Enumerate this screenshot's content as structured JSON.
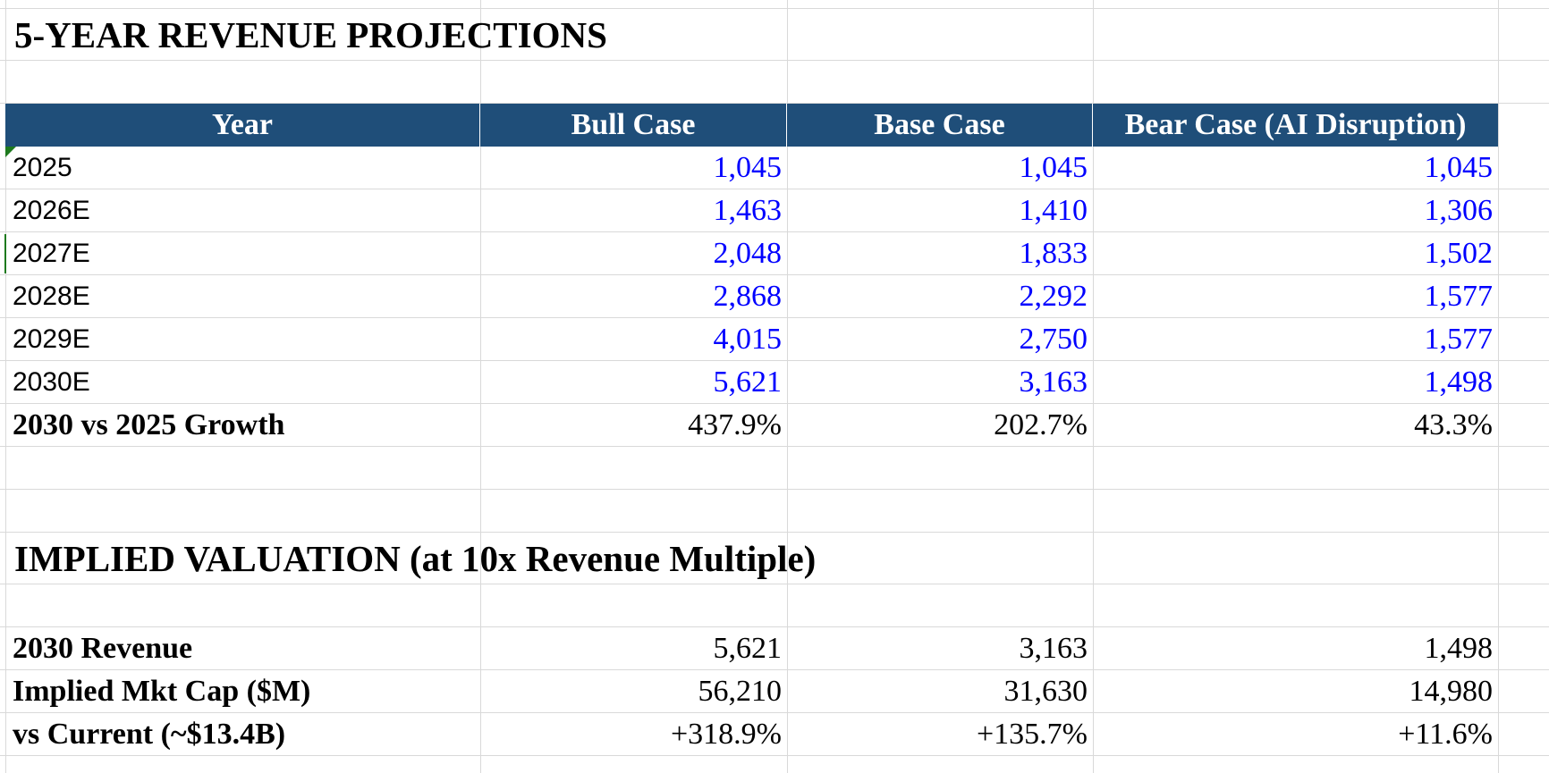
{
  "projections": {
    "title": "5-YEAR REVENUE PROJECTIONS",
    "headers": [
      "Year",
      "Bull Case",
      "Base Case",
      "Bear Case (AI Disruption)"
    ],
    "rows": [
      {
        "year": "2025",
        "bull": "1,045",
        "base": "1,045",
        "bear": "1,045"
      },
      {
        "year": "2026E",
        "bull": "1,463",
        "base": "1,410",
        "bear": "1,306"
      },
      {
        "year": "2027E",
        "bull": "2,048",
        "base": "1,833",
        "bear": "1,502"
      },
      {
        "year": "2028E",
        "bull": "2,868",
        "base": "2,292",
        "bear": "1,577"
      },
      {
        "year": "2029E",
        "bull": "4,015",
        "base": "2,750",
        "bear": "1,577"
      },
      {
        "year": "2030E",
        "bull": "5,621",
        "base": "3,163",
        "bear": "1,498"
      }
    ],
    "growth": {
      "label": "2030 vs 2025 Growth",
      "bull": "437.9%",
      "base": "202.7%",
      "bear": "43.3%"
    }
  },
  "valuation": {
    "title": "IMPLIED VALUATION (at 10x Revenue Multiple)",
    "rows": [
      {
        "label": "2030 Revenue",
        "bull": "5,621",
        "base": "3,163",
        "bear": "1,498"
      },
      {
        "label": "Implied Mkt Cap ($M)",
        "bull": "56,210",
        "base": "31,630",
        "bear": "14,980"
      },
      {
        "label": "vs Current (~$13.4B)",
        "bull": "+318.9%",
        "base": "+135.7%",
        "bear": "+11.6%"
      }
    ]
  },
  "colors": {
    "header_bg": "#1f4e79",
    "header_text": "#ffffff",
    "input_value": "#0000ff",
    "gridline": "#d9d9d9"
  }
}
